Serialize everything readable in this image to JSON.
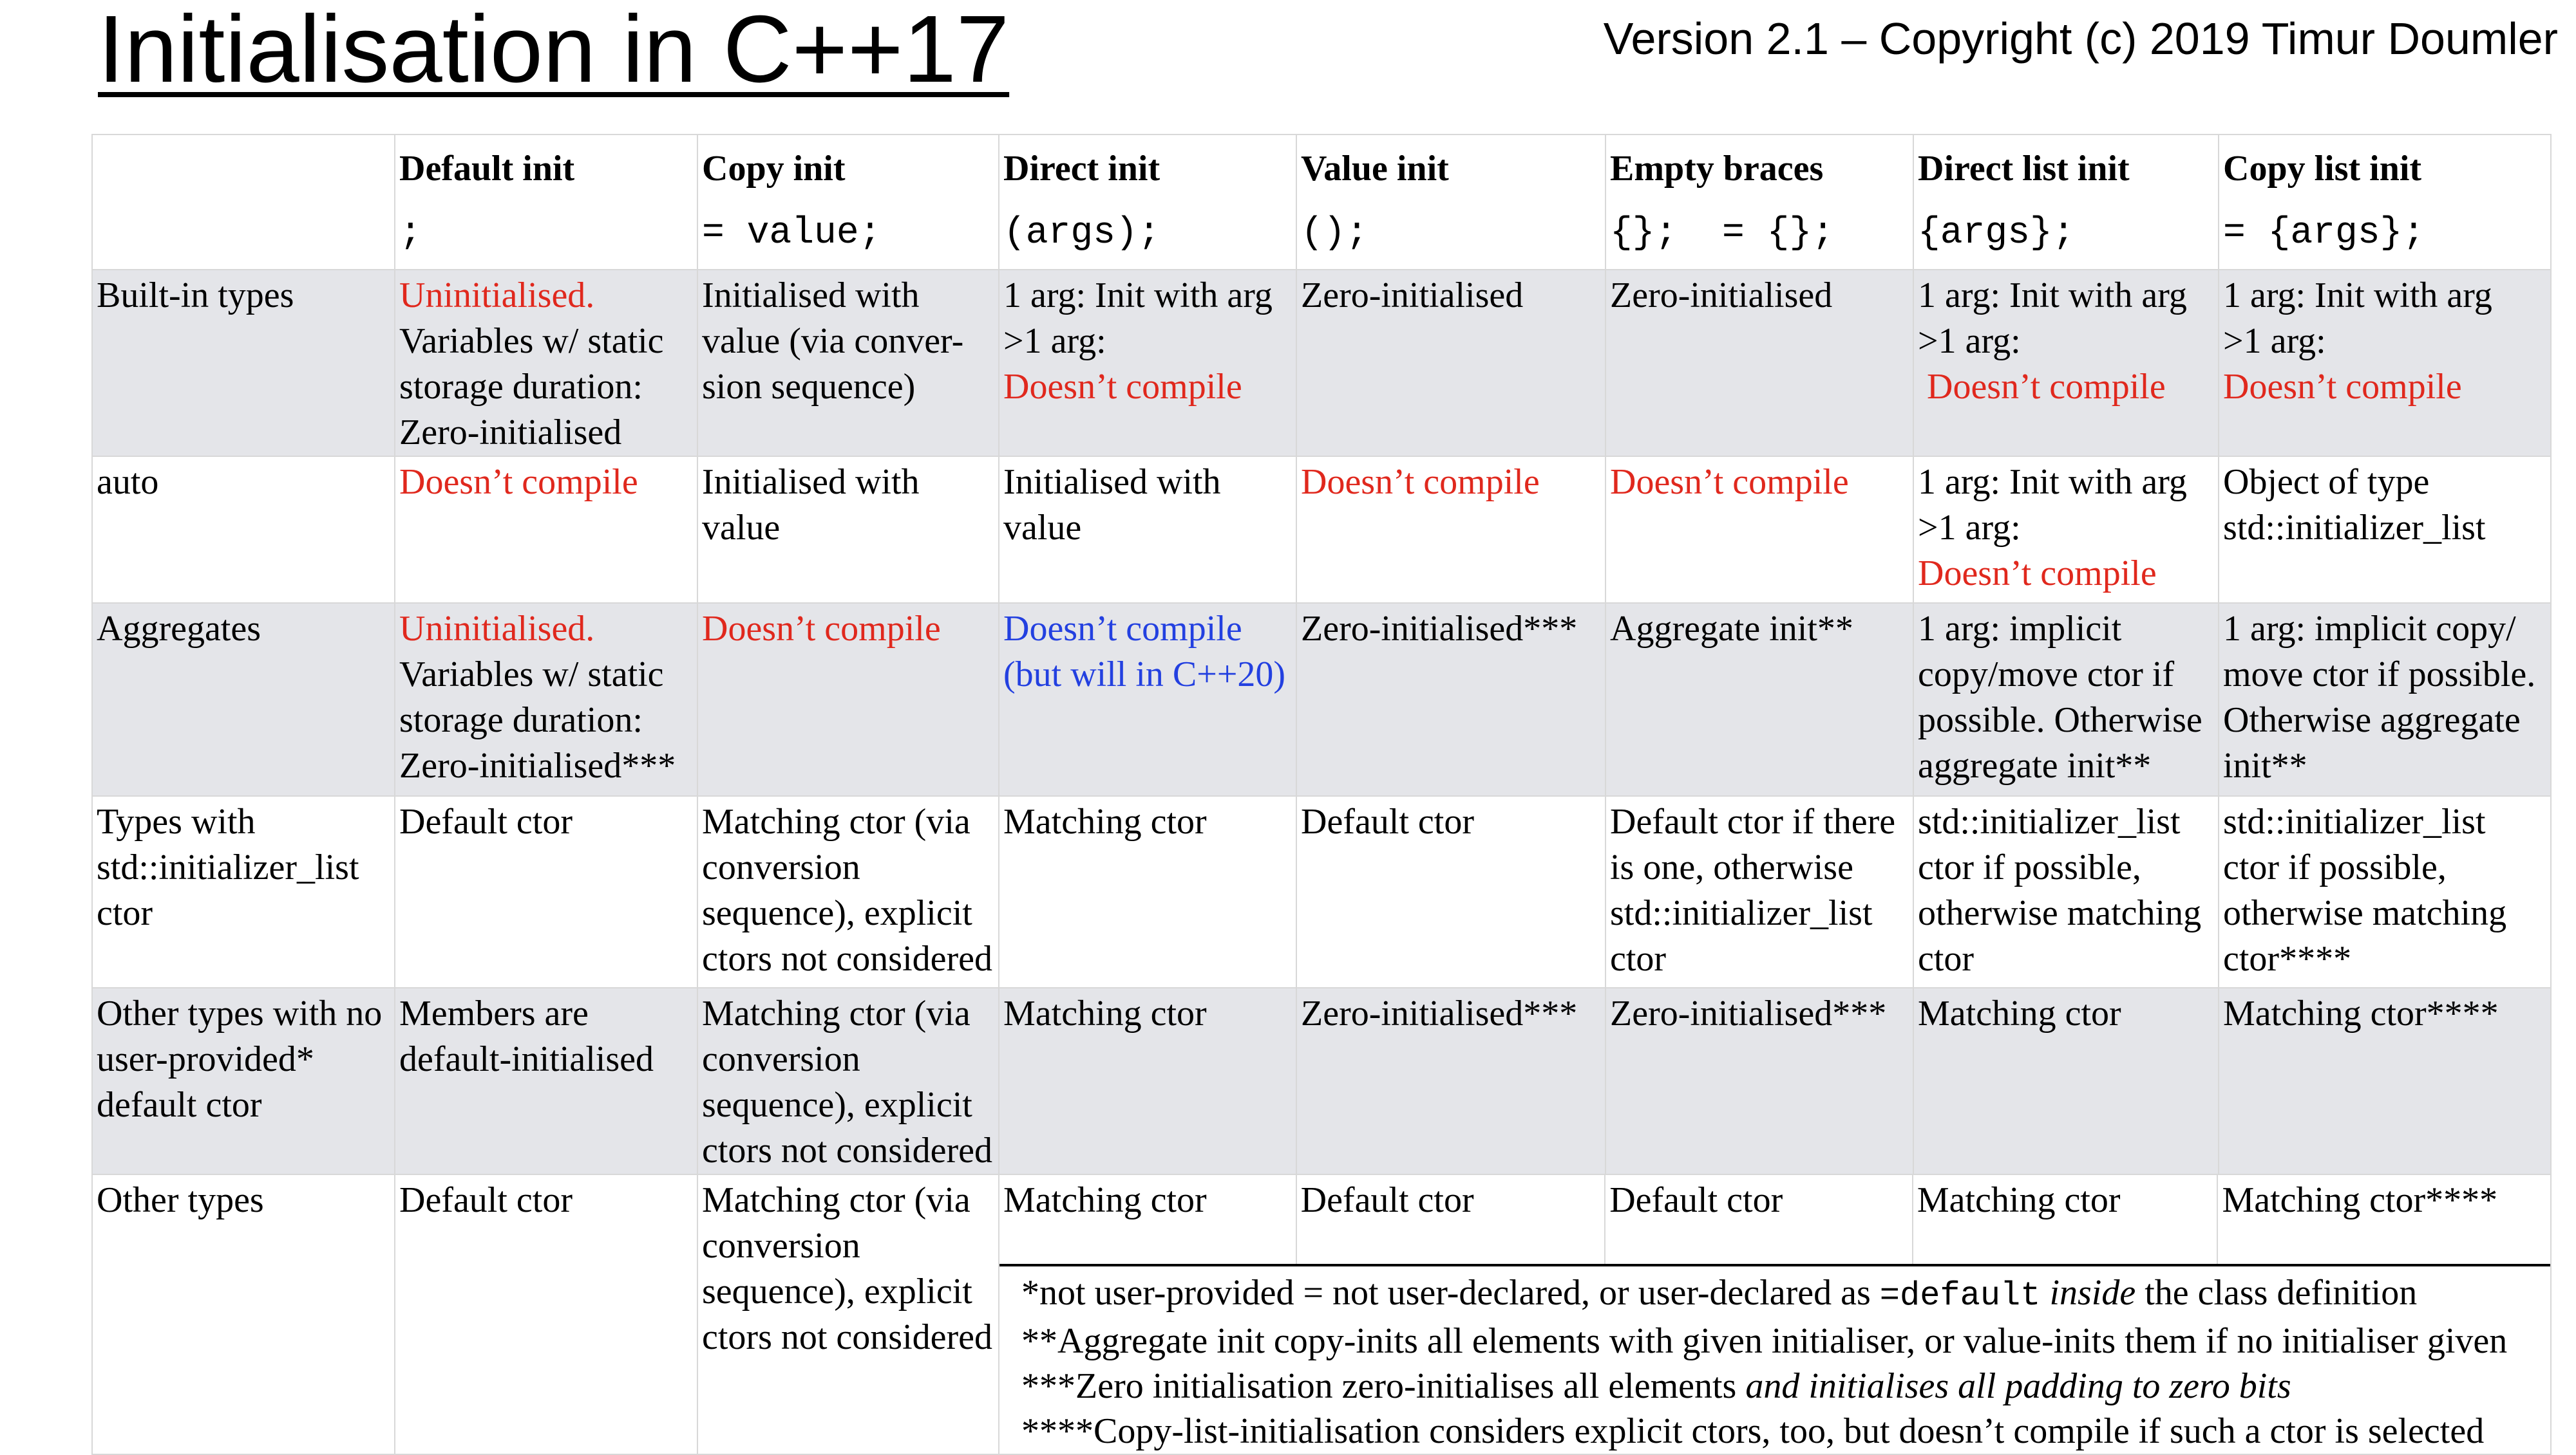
{
  "title": "Initialisation in C++17",
  "version": "Version 2.1 – Copyright (c) 2019 Timur Doumler",
  "columns": [
    {
      "name": "Default init",
      "code": ";"
    },
    {
      "name": "Copy init",
      "code": "= value;"
    },
    {
      "name": "Direct init",
      "code": "(args);"
    },
    {
      "name": "Value init",
      "code": "();"
    },
    {
      "name": "Empty braces",
      "code": "{};  = {};"
    },
    {
      "name": "Direct list init",
      "code": "{args};"
    },
    {
      "name": "Copy list init",
      "code": "= {args};"
    }
  ],
  "rows": {
    "builtin": {
      "label": "Built-in types",
      "default_red": "Uninitialised.",
      "default_rest": "Variables w/ static storage duration: Zero-initialised",
      "copy": "Initialised with value (via conver-sion sequence)",
      "direct_1": "1 arg: Init with arg",
      "direct_2": ">1 arg:",
      "direct_red": "Doesn’t compile",
      "value": "Zero-initialised",
      "empty": "Zero-initialised",
      "dlist_1": "1 arg: Init with arg",
      "dlist_2": ">1 arg:",
      "dlist_red": "Doesn’t compile",
      "clist_1": "1 arg: Init with arg",
      "clist_2": ">1 arg:",
      "clist_red": "Doesn’t compile"
    },
    "auto": {
      "label": "auto",
      "default_red": "Doesn’t compile",
      "copy": "Initialised with value",
      "direct": "Initialised with value",
      "value_red": "Doesn’t compile",
      "empty_red": "Doesn’t compile",
      "dlist_1": "1 arg: Init with arg",
      "dlist_2": ">1 arg:",
      "dlist_red": "Doesn’t compile",
      "clist": "Object of type std::initializer_list"
    },
    "aggregates": {
      "label": "Aggregates",
      "default_red": "Uninitialised.",
      "default_rest": "Variables w/ static storage duration: Zero-initialised***",
      "copy_red": "Doesn’t compile",
      "direct_blue": "Doesn’t compile (but will in C++20)",
      "value": "Zero-initialised***",
      "empty": "Aggregate init**",
      "dlist": "1 arg: implicit copy/move ctor if possible. Otherwise aggregate init**",
      "clist": "1 arg: implicit copy/ move ctor if possible. Otherwise aggregate init**"
    },
    "initlist": {
      "label": "Types with std::initializer_list ctor",
      "default": "Default ctor",
      "copy": "Matching ctor (via conversion sequence), explicit ctors not considered",
      "direct": "Matching ctor",
      "value": "Default ctor",
      "empty": "Default ctor if there is one, otherwise std::initializer_list ctor",
      "dlist": "std::initializer_list ctor if possible, otherwise matching ctor",
      "clist": "std::initializer_list ctor if possible, otherwise matching ctor****"
    },
    "nouser": {
      "label": "Other types with no user-provided* default ctor",
      "default": "Members are default-initialised",
      "copy": "Matching ctor (via conversion sequence), explicit ctors not considered",
      "direct": "Matching ctor",
      "value": "Zero-initialised***",
      "empty": "Zero-initialised***",
      "dlist": "Matching ctor",
      "clist": "Matching ctor****"
    },
    "other": {
      "label": "Other types",
      "default": "Default ctor",
      "copy": "Matching ctor (via conversion sequence), explicit ctors not considered",
      "direct": "Matching ctor",
      "value": "Default ctor",
      "empty": "Default ctor",
      "dlist": "Matching ctor",
      "clist": "Matching ctor****"
    }
  },
  "footnotes": {
    "f1_a": "*not user-provided = not user-declared, or user-declared as ",
    "f1_code": "=default",
    "f1_b": " ",
    "f1_italic": "inside",
    "f1_c": " the class definition",
    "f2": "**Aggregate init copy-inits all elements with given initialiser, or value-inits them if no initialiser given",
    "f3_a": "***Zero initialisation zero-initialises all elements ",
    "f3_italic": "and initialises all padding to zero bits",
    "f4": "****Copy-list-initialisation considers explicit ctors, too, but doesn’t compile if such a ctor is selected"
  },
  "colors": {
    "error": "#e0281d",
    "future": "#2340e0",
    "row_shade": "#e4e5e9"
  }
}
